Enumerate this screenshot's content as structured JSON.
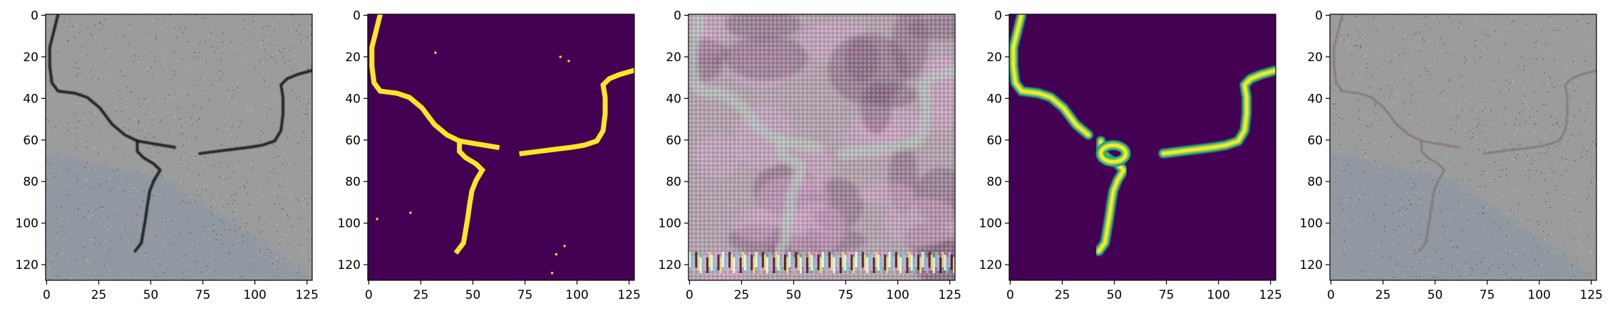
{
  "figure": {
    "panels": [
      {
        "id": "rgb-input",
        "kind": "asphalt-photo",
        "base_color": "#8f9091",
        "speckle_light": "#b9babb",
        "speckle_dark": "#5f6062",
        "lower_tint": "#7d8a99",
        "crack_color": "#1a1a1c",
        "crack_opacity": 0.92
      },
      {
        "id": "ground-truth-mask",
        "kind": "binary-mask",
        "background": "#440154",
        "foreground": "#fde725"
      },
      {
        "id": "noisy-reconstruction",
        "kind": "noisy-photo",
        "base_color": "#b6a3b0",
        "pink": "#d9a7cf",
        "dark": "#7f5a78",
        "cyan": "#63d9c9",
        "crack_color": "#b9c7c1"
      },
      {
        "id": "predicted-mask",
        "kind": "soft-mask",
        "background": "#440154",
        "edge": "#21918c",
        "mid": "#5ec962",
        "core": "#fde725"
      },
      {
        "id": "overlay",
        "kind": "overlay-photo",
        "base_color": "#8f9091",
        "speckle_light": "#b9babb",
        "speckle_dark": "#5f6062",
        "lower_tint": "#7d8a99",
        "crack_color": "#7b5f63",
        "crack_opacity": 0.55
      }
    ],
    "axes": {
      "x_ticks": [
        "0",
        "25",
        "50",
        "75",
        "100",
        "125"
      ],
      "y_ticks": [
        "0",
        "20",
        "40",
        "60",
        "80",
        "100",
        "120"
      ],
      "range": [
        0,
        128
      ]
    },
    "crack_paths": [
      [
        [
          6,
          0
        ],
        [
          4,
          8
        ],
        [
          2,
          16
        ],
        [
          2,
          25
        ],
        [
          3,
          33
        ],
        [
          6,
          37
        ],
        [
          14,
          38
        ],
        [
          20,
          40
        ],
        [
          26,
          45
        ],
        [
          32,
          53
        ],
        [
          38,
          58
        ],
        [
          44,
          61
        ],
        [
          50,
          62
        ],
        [
          56,
          63
        ],
        [
          62,
          64
        ]
      ],
      [
        [
          44,
          61
        ],
        [
          44,
          66
        ],
        [
          47,
          69
        ],
        [
          52,
          72
        ],
        [
          55,
          75
        ],
        [
          52,
          80
        ],
        [
          50,
          85
        ],
        [
          49,
          91
        ],
        [
          48,
          98
        ],
        [
          47,
          104
        ],
        [
          46,
          110
        ],
        [
          43,
          114
        ]
      ],
      [
        [
          74,
          67
        ],
        [
          82,
          66
        ],
        [
          90,
          65
        ],
        [
          98,
          64
        ],
        [
          104,
          63
        ],
        [
          110,
          61
        ],
        [
          113,
          56
        ],
        [
          114,
          48
        ],
        [
          114,
          40
        ],
        [
          113,
          34
        ],
        [
          116,
          31
        ],
        [
          121,
          29
        ],
        [
          128,
          27
        ]
      ]
    ]
  }
}
